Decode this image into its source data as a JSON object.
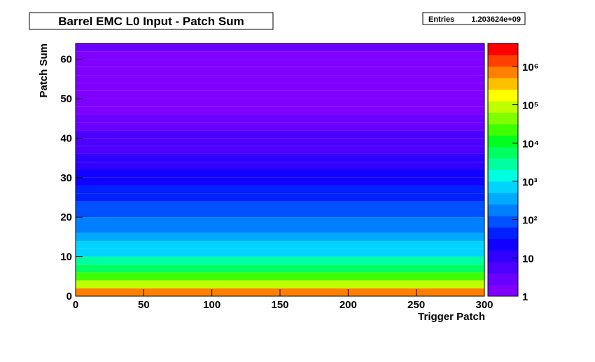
{
  "chart_data": {
    "type": "heatmap",
    "title": "Barrel EMC L0 Input - Patch Sum",
    "stats": {
      "name": "Entries",
      "value": 1203624000,
      "label": "1.203624e+09"
    },
    "x_label": "Trigger Patch",
    "y_label": "Patch Sum",
    "xlim": [
      0,
      300
    ],
    "xticks": [
      0,
      50,
      100,
      150,
      200,
      250,
      300
    ],
    "ylim": [
      0,
      64
    ],
    "yticks": [
      0,
      10,
      20,
      30,
      40,
      50,
      60
    ],
    "y_bins": [
      0,
      2,
      4,
      6,
      8,
      10,
      12,
      14,
      16,
      18,
      20,
      22,
      24,
      26,
      28,
      30,
      32,
      34,
      36,
      38,
      40,
      42,
      44,
      46,
      48,
      50,
      52,
      54,
      56,
      58,
      60,
      62,
      64
    ],
    "values": [
      1000000,
      100000,
      20000,
      5000,
      2000,
      1000,
      600,
      400,
      250,
      150,
      100,
      70,
      50,
      35,
      25,
      18,
      12,
      8,
      6,
      5,
      4,
      3,
      2,
      1,
      1,
      1,
      1,
      1,
      1,
      1,
      1,
      2
    ],
    "zlim": [
      1,
      4000000
    ],
    "log_z": true,
    "zticks": [
      1,
      10,
      {
        "value": 100,
        "label": "10²"
      },
      {
        "value": 1000,
        "label": "10³"
      },
      {
        "value": 10000,
        "label": "10⁴"
      },
      {
        "value": 100000,
        "label": "10⁵"
      },
      {
        "value": 1000000,
        "label": "10⁶"
      }
    ],
    "palette": [
      "#7f00ff",
      "#6a00ff",
      "#4d00ff",
      "#3000ff",
      "#1000ff",
      "#0020ff",
      "#0050ff",
      "#0080ff",
      "#00aaff",
      "#00d4ff",
      "#00ffe0",
      "#00ffa0",
      "#00ff60",
      "#00ff20",
      "#40ff00",
      "#80ff00",
      "#c0ff00",
      "#ffff00",
      "#ffc000",
      "#ff8000",
      "#ff4000",
      "#ff0000"
    ]
  }
}
